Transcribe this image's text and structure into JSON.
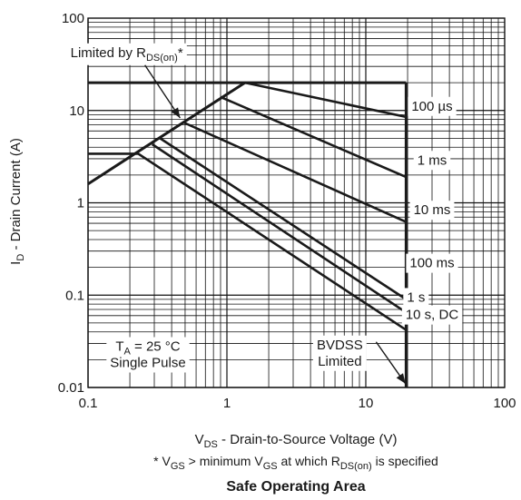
{
  "chart_data": {
    "type": "line",
    "title": "Safe Operating Area",
    "xlabel": {
      "main": "V",
      "sub": "DS",
      "rest": " - Drain-to-Source Voltage (V)"
    },
    "ylabel": {
      "main": "I",
      "sub": "D",
      "rest": " - Drain Current (A)"
    },
    "footnote": {
      "p1": "* V",
      "s1": "GS",
      "p2": " >  minimum V",
      "s2": "GS",
      "p3": " at which R",
      "s3": "DS(on)",
      "p4": " is specified"
    },
    "x_scale": "log",
    "y_scale": "log",
    "xlim": [
      0.1,
      100
    ],
    "ylim": [
      0.01,
      100
    ],
    "grid": true,
    "x_ticks": [
      {
        "v": 0.1,
        "t": "0.1"
      },
      {
        "v": 1,
        "t": "1"
      },
      {
        "v": 10,
        "t": "10"
      },
      {
        "v": 100,
        "t": "100"
      }
    ],
    "y_ticks": [
      {
        "v": 0.01,
        "t": "0.01"
      },
      {
        "v": 0.1,
        "t": "0.1"
      },
      {
        "v": 1,
        "t": "1"
      },
      {
        "v": 10,
        "t": "10"
      },
      {
        "v": 100,
        "t": "100"
      }
    ],
    "limit_lines": [
      {
        "name": "RDS(on) limit",
        "points": [
          [
            0.1,
            1.6
          ],
          [
            1.35,
            20
          ]
        ]
      },
      {
        "name": "Current limit",
        "points": [
          [
            0.1,
            20
          ],
          [
            19.5,
            20
          ]
        ]
      },
      {
        "name": "BVDSS limit",
        "points": [
          [
            19.5,
            0.01
          ],
          [
            19.5,
            20
          ]
        ]
      }
    ],
    "series": [
      {
        "name": "100 µs",
        "points": [
          [
            1.35,
            20
          ],
          [
            19.5,
            8.5
          ]
        ]
      },
      {
        "name": "1 ms",
        "points": [
          [
            0.9,
            14
          ],
          [
            19.5,
            1.9
          ]
        ]
      },
      {
        "name": "10 ms",
        "points": [
          [
            0.48,
            7.5
          ],
          [
            19.5,
            0.62
          ]
        ]
      },
      {
        "name": "100 ms",
        "points": [
          [
            0.33,
            5.0
          ],
          [
            19.5,
            0.09
          ]
        ]
      },
      {
        "name": "1 s",
        "points": [
          [
            0.29,
            4.3
          ],
          [
            19.5,
            0.065
          ]
        ]
      },
      {
        "name": "10 s, DC",
        "points": [
          [
            0.1,
            3.4
          ],
          [
            0.23,
            3.4
          ],
          [
            19.5,
            0.042
          ]
        ]
      }
    ],
    "series_labels": [
      {
        "text": "100 µs",
        "x": 30,
        "y": 10
      },
      {
        "text": "1 ms",
        "x": 30,
        "y": 2.6
      },
      {
        "text": "10 ms",
        "x": 30,
        "y": 0.75
      },
      {
        "text": "100 ms",
        "x": 30,
        "y": 0.2
      },
      {
        "text": "1 s",
        "x": 23,
        "y": 0.085
      },
      {
        "text": "10 s, DC",
        "x": 30,
        "y": 0.055
      }
    ],
    "annotations": {
      "rds_label": {
        "pre": "Limited by R",
        "sub": "DS(on)",
        "post": "*",
        "x": 0.19,
        "y": 38,
        "arrow_to": [
          0.46,
          8.3
        ]
      },
      "conditions": {
        "l1_main": "T",
        "l1_sub": "A",
        "l1_rest": " = 25 °C",
        "l2": "Single Pulse",
        "x": 0.27,
        "y": 0.025
      },
      "bvdss": {
        "l1": "BVDSS",
        "l2": "Limited",
        "x": 6.5,
        "y": 0.026,
        "arrow_to": [
          19.3,
          0.011
        ]
      }
    },
    "colors": {
      "grid": "#111111",
      "line": "#1a1a1a",
      "background": "#ffffff"
    }
  }
}
